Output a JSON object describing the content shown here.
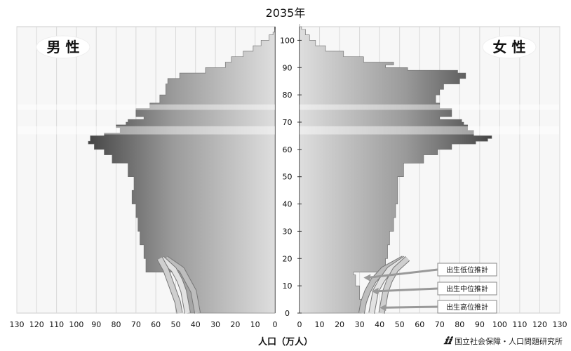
{
  "chart_data": {
    "type": "bar",
    "subtype": "population-pyramid",
    "title": "2035年",
    "xlabel": "人口（万人）",
    "xlim": [
      0,
      130
    ],
    "x_ticks": [
      0,
      10,
      20,
      30,
      40,
      50,
      60,
      70,
      80,
      90,
      100,
      110,
      120,
      130
    ],
    "ylim": [
      0,
      105
    ],
    "y_ticks": [
      0,
      10,
      20,
      30,
      40,
      50,
      60,
      70,
      80,
      90,
      100
    ],
    "grid": true,
    "male_label": "男 性",
    "female_label": "女 性",
    "male_profile": [
      [
        0,
        44
      ],
      [
        5,
        46
      ],
      [
        10,
        48
      ],
      [
        14,
        49
      ],
      [
        15,
        65
      ],
      [
        20,
        66
      ],
      [
        25,
        68
      ],
      [
        30,
        69
      ],
      [
        35,
        70
      ],
      [
        40,
        72
      ],
      [
        45,
        71
      ],
      [
        50,
        74
      ],
      [
        55,
        82
      ],
      [
        58,
        86
      ],
      [
        60,
        91
      ],
      [
        62,
        94
      ],
      [
        63,
        93
      ],
      [
        65,
        86
      ],
      [
        66,
        78
      ],
      [
        68,
        80
      ],
      [
        69,
        75
      ],
      [
        70,
        74
      ],
      [
        71,
        66
      ],
      [
        72,
        70
      ],
      [
        75,
        63
      ],
      [
        77,
        58
      ],
      [
        80,
        55
      ],
      [
        84,
        54
      ],
      [
        86,
        48
      ],
      [
        88,
        35
      ],
      [
        90,
        25
      ],
      [
        92,
        22
      ],
      [
        94,
        16
      ],
      [
        96,
        11
      ],
      [
        98,
        7
      ],
      [
        100,
        3
      ],
      [
        102,
        1
      ],
      [
        103,
        0
      ]
    ],
    "female_profile": [
      [
        0,
        31
      ],
      [
        5,
        30
      ],
      [
        10,
        28
      ],
      [
        14,
        27
      ],
      [
        15,
        43
      ],
      [
        20,
        44
      ],
      [
        25,
        45
      ],
      [
        30,
        47
      ],
      [
        35,
        48
      ],
      [
        40,
        49
      ],
      [
        45,
        49
      ],
      [
        50,
        52
      ],
      [
        55,
        62
      ],
      [
        58,
        69
      ],
      [
        60,
        76
      ],
      [
        62,
        88
      ],
      [
        63,
        94
      ],
      [
        64,
        96
      ],
      [
        65,
        87
      ],
      [
        67,
        84
      ],
      [
        69,
        82
      ],
      [
        70,
        81
      ],
      [
        71,
        70
      ],
      [
        72,
        76
      ],
      [
        75,
        70
      ],
      [
        77,
        68
      ],
      [
        80,
        70
      ],
      [
        82,
        72
      ],
      [
        84,
        80
      ],
      [
        86,
        83
      ],
      [
        88,
        79
      ],
      [
        89,
        54
      ],
      [
        90,
        43
      ],
      [
        91,
        47
      ],
      [
        92,
        32
      ],
      [
        94,
        22
      ],
      [
        96,
        13
      ],
      [
        98,
        8
      ],
      [
        100,
        5
      ],
      [
        102,
        3
      ],
      [
        104,
        1
      ],
      [
        105,
        0
      ]
    ],
    "series": [
      {
        "name": "出生低位推計",
        "male_under20": [
          39,
          40,
          41,
          44,
          47,
          55
        ],
        "female_under20": [
          31,
          32,
          34,
          37,
          42,
          52
        ]
      },
      {
        "name": "出生中位推計",
        "male_under20": [
          44,
          45,
          46,
          48,
          51,
          57
        ],
        "female_under20": [
          36,
          37,
          38,
          41,
          45,
          53
        ]
      },
      {
        "name": "出生高位推計",
        "male_under20": [
          48,
          49,
          51,
          53,
          55,
          58
        ],
        "female_under20": [
          41,
          42,
          43,
          45,
          48,
          54
        ]
      }
    ],
    "under20_ages": [
      0,
      4,
      8,
      12,
      16,
      20
    ],
    "legend_placement": "bottom-right",
    "source": "国立社会保障・人口問題研究所"
  }
}
